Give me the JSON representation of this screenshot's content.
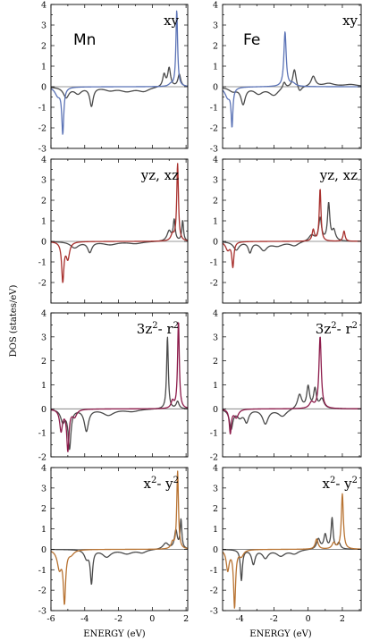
{
  "chart_data": {
    "type": "line",
    "ylabel": "DOS (states/eV)",
    "xlabel": "ENERGY (eV)",
    "colors": {
      "total": "#4a4a4a",
      "xy": "#5b73b6",
      "yz_xz": "#a8302d",
      "3z2": "#8c1a4a",
      "x2y2": "#b87332",
      "zero_line": "#777777"
    },
    "columns": [
      {
        "element": "Mn",
        "xlim": [
          -6,
          2.1
        ],
        "xticks": [
          -6,
          -4,
          -2,
          0,
          2
        ],
        "xtick_labels": [
          "-6",
          "-4",
          "-2",
          "0",
          "2"
        ]
      },
      {
        "element": "Fe",
        "xlim": [
          -5,
          3.1
        ],
        "xticks": [
          -4,
          -2,
          0,
          2
        ],
        "xtick_labels": [
          "-4",
          "-2",
          "0",
          "2"
        ]
      }
    ],
    "rows": [
      {
        "orbital": "xy",
        "ylim": [
          -3,
          4
        ],
        "yticks": [
          -3,
          -2,
          -1,
          0,
          1,
          2,
          3,
          4
        ],
        "ytick_labels": [
          "-3",
          "-2",
          "-1",
          "0",
          "1",
          "2",
          "3",
          "4"
        ]
      },
      {
        "orbital": "yz, xz",
        "ylim": [
          -3,
          4
        ],
        "yticks": [
          -2,
          -1,
          0,
          1,
          2,
          3,
          4
        ],
        "ytick_labels": [
          "-2",
          "-1",
          "0",
          "1",
          "2",
          "3",
          "4"
        ]
      },
      {
        "orbital_base": "3z",
        "orbital_sup1": "2",
        "orbital_mid": "- r",
        "orbital_sup2": "2",
        "ylim": [
          -2,
          4
        ],
        "yticks": [
          -2,
          -1,
          0,
          1,
          2,
          3,
          4
        ],
        "ytick_labels": [
          "-2",
          "-1",
          "0",
          "1",
          "2",
          "3",
          "4"
        ]
      },
      {
        "orbital_base": "x",
        "orbital_sup1": "2",
        "orbital_mid": "- y",
        "orbital_sup2": "2",
        "ylim": [
          -3,
          4
        ],
        "yticks": [
          -3,
          -2,
          -1,
          0,
          1,
          2,
          3,
          4
        ],
        "ytick_labels": [
          "-3",
          "-2",
          "-1",
          "0",
          "1",
          "2",
          "3",
          "4"
        ]
      }
    ],
    "panels": [
      {
        "element": "Mn",
        "orbital": "xy",
        "colorKey": "xy",
        "series": [
          {
            "kind": "total",
            "peaks": [
              [
                0.7,
                0.6,
                0.1
              ],
              [
                1.0,
                0.9,
                0.1
              ],
              [
                1.6,
                0.6,
                0.1
              ],
              [
                -3.6,
                -0.9,
                0.12
              ],
              [
                -4.4,
                -0.3,
                0.25
              ],
              [
                -5.1,
                -0.5,
                0.2
              ],
              [
                -1.5,
                -0.2,
                0.5
              ],
              [
                -0.5,
                -0.2,
                0.4
              ],
              [
                -2.5,
                -0.15,
                0.4
              ]
            ]
          },
          {
            "kind": "orbital",
            "peaks": [
              [
                1.45,
                3.7,
                0.06
              ],
              [
                1.1,
                0.1,
                0.15
              ],
              [
                -5.3,
                -2.2,
                0.07
              ],
              [
                -5.6,
                -0.4,
                0.2
              ]
            ]
          }
        ]
      },
      {
        "element": "Fe",
        "orbital": "xy",
        "colorKey": "xy",
        "series": [
          {
            "kind": "total",
            "peaks": [
              [
                -0.8,
                0.9,
                0.12
              ],
              [
                0.3,
                0.5,
                0.15
              ],
              [
                -1.4,
                0.3,
                0.1
              ],
              [
                1.2,
                0.15,
                0.4
              ],
              [
                -3.8,
                -0.8,
                0.15
              ],
              [
                -2.9,
                -0.3,
                0.3
              ],
              [
                -4.4,
                -0.2,
                0.3
              ],
              [
                -0.5,
                -0.3,
                0.15
              ],
              [
                -2.0,
                -0.4,
                0.35
              ],
              [
                2.5,
                0.1,
                0.5
              ]
            ]
          },
          {
            "kind": "orbital",
            "peaks": [
              [
                -1.35,
                3.2,
                0.08
              ],
              [
                -0.9,
                0.15,
                0.2
              ],
              [
                -4.45,
                -1.8,
                0.06
              ],
              [
                -4.7,
                -0.5,
                0.2
              ],
              [
                -1.35,
                -0.55,
                0.08
              ]
            ]
          }
        ]
      },
      {
        "element": "Mn",
        "orbital": "yz, xz",
        "colorKey": "yz_xz",
        "series": [
          {
            "kind": "total",
            "peaks": [
              [
                1.0,
                0.5,
                0.15
              ],
              [
                1.3,
                1.0,
                0.07
              ],
              [
                1.8,
                1.0,
                0.06
              ],
              [
                -3.7,
                -0.5,
                0.15
              ],
              [
                -4.6,
                -0.3,
                0.3
              ],
              [
                -2.5,
                -0.15,
                0.5
              ],
              [
                -1.0,
                -0.1,
                0.5
              ]
            ]
          },
          {
            "kind": "orbital",
            "peaks": [
              [
                1.5,
                3.75,
                0.06
              ],
              [
                1.2,
                0.3,
                0.12
              ],
              [
                -5.3,
                -1.9,
                0.08
              ],
              [
                -5.0,
                -0.8,
                0.12
              ]
            ]
          }
        ]
      },
      {
        "element": "Fe",
        "orbital": "yz, xz",
        "colorKey": "yz_xz",
        "series": [
          {
            "kind": "total",
            "peaks": [
              [
                1.2,
                1.8,
                0.08
              ],
              [
                0.7,
                1.1,
                0.1
              ],
              [
                1.5,
                0.5,
                0.12
              ],
              [
                0.2,
                0.3,
                0.2
              ],
              [
                -3.4,
                -0.5,
                0.12
              ],
              [
                -2.6,
                -0.4,
                0.25
              ],
              [
                -4.2,
                -0.4,
                0.2
              ],
              [
                -1.8,
                -0.2,
                0.4
              ],
              [
                -0.8,
                -0.2,
                0.3
              ]
            ]
          },
          {
            "kind": "orbital",
            "peaks": [
              [
                0.7,
                2.55,
                0.06
              ],
              [
                0.3,
                0.55,
                0.08
              ],
              [
                2.1,
                0.5,
                0.07
              ],
              [
                -4.4,
                -1.2,
                0.07
              ],
              [
                -4.7,
                -0.4,
                0.15
              ]
            ]
          }
        ]
      },
      {
        "element": "Mn",
        "orbital": "3z2-r2",
        "colorKey": "3z2",
        "series": [
          {
            "kind": "total",
            "peaks": [
              [
                0.9,
                3.0,
                0.06
              ],
              [
                1.5,
                0.3,
                0.1
              ],
              [
                -4.9,
                -1.6,
                0.1
              ],
              [
                -3.9,
                -0.9,
                0.15
              ],
              [
                -5.3,
                -0.5,
                0.15
              ],
              [
                -2.6,
                -0.25,
                0.4
              ],
              [
                -1.2,
                -0.1,
                0.5
              ]
            ]
          },
          {
            "kind": "orbital",
            "peaks": [
              [
                1.55,
                3.65,
                0.06
              ],
              [
                1.2,
                0.3,
                0.1
              ],
              [
                -5.0,
                -1.7,
                0.08
              ],
              [
                -5.4,
                -0.9,
                0.1
              ],
              [
                -4.6,
                -0.3,
                0.15
              ]
            ]
          }
        ]
      },
      {
        "element": "Fe",
        "orbital": "3z2-r2",
        "colorKey": "3z2",
        "series": [
          {
            "kind": "total",
            "peaks": [
              [
                0.0,
                0.9,
                0.1
              ],
              [
                0.4,
                0.8,
                0.1
              ],
              [
                -0.5,
                0.6,
                0.15
              ],
              [
                0.8,
                0.4,
                0.15
              ],
              [
                -4.5,
                -0.8,
                0.12
              ],
              [
                -3.6,
                -0.5,
                0.15
              ],
              [
                -2.5,
                -0.6,
                0.2
              ],
              [
                -1.5,
                -0.3,
                0.3
              ],
              [
                -4.0,
                -0.3,
                0.2
              ]
            ]
          },
          {
            "kind": "orbital",
            "peaks": [
              [
                0.7,
                3.0,
                0.08
              ],
              [
                0.2,
                0.25,
                0.15
              ],
              [
                -4.55,
                -1.0,
                0.07
              ],
              [
                -4.2,
                -0.35,
                0.15
              ]
            ]
          }
        ]
      },
      {
        "element": "Mn",
        "orbital": "x2-y2",
        "colorKey": "x2y2",
        "series": [
          {
            "kind": "total",
            "peaks": [
              [
                1.4,
                0.9,
                0.1
              ],
              [
                1.7,
                1.4,
                0.06
              ],
              [
                0.8,
                0.3,
                0.2
              ],
              [
                -3.6,
                -1.6,
                0.08
              ],
              [
                -3.9,
                -0.4,
                0.15
              ],
              [
                -2.7,
                -0.35,
                0.3
              ],
              [
                -1.5,
                -0.2,
                0.4
              ],
              [
                -0.6,
                -0.15,
                0.3
              ]
            ]
          },
          {
            "kind": "orbital",
            "peaks": [
              [
                1.5,
                3.8,
                0.06
              ],
              [
                1.2,
                0.3,
                0.1
              ],
              [
                -5.2,
                -2.5,
                0.08
              ],
              [
                -5.5,
                -0.9,
                0.15
              ],
              [
                -4.8,
                -0.2,
                0.2
              ]
            ]
          }
        ]
      },
      {
        "element": "Fe",
        "orbital": "x2-y2",
        "colorKey": "x2y2",
        "series": [
          {
            "kind": "total",
            "peaks": [
              [
                1.4,
                1.5,
                0.07
              ],
              [
                1.0,
                0.7,
                0.1
              ],
              [
                0.6,
                0.5,
                0.12
              ],
              [
                1.8,
                0.3,
                0.1
              ],
              [
                -3.9,
                -1.5,
                0.07
              ],
              [
                -3.2,
                -0.7,
                0.12
              ],
              [
                -2.5,
                -0.4,
                0.2
              ],
              [
                -1.6,
                -0.3,
                0.3
              ],
              [
                -0.8,
                -0.2,
                0.3
              ]
            ]
          },
          {
            "kind": "orbital",
            "peaks": [
              [
                2.0,
                2.7,
                0.07
              ],
              [
                0.5,
                0.5,
                0.1
              ],
              [
                1.5,
                0.3,
                0.12
              ],
              [
                -4.3,
                -2.8,
                0.07
              ],
              [
                -4.7,
                -1.0,
                0.1
              ],
              [
                -3.9,
                -0.3,
                0.15
              ]
            ]
          }
        ]
      }
    ]
  }
}
